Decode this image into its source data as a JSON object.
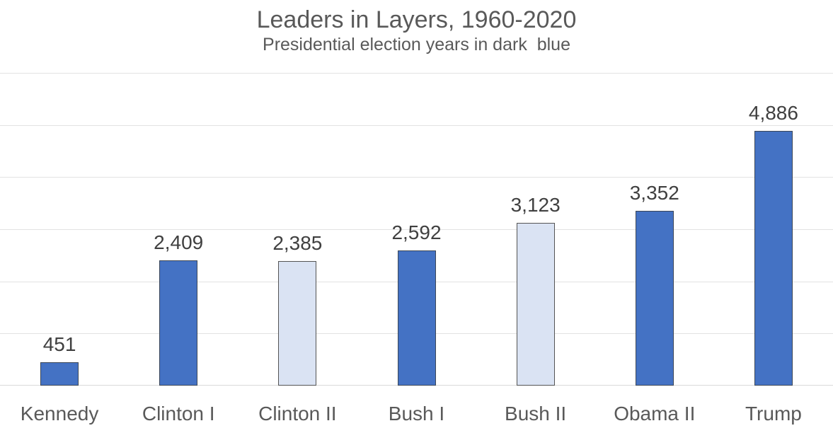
{
  "page": {
    "background": "#FFFFFF"
  },
  "chart_data": {
    "type": "bar",
    "title": "Leaders in Layers, 1960-2020",
    "subtitle": "Presidential election years in dark  blue",
    "categories": [
      "Kennedy",
      "Clinton I",
      "Clinton II",
      "Bush I",
      "Bush II",
      "Obama II",
      "Trump"
    ],
    "values": [
      451,
      2409,
      2385,
      2592,
      3123,
      3352,
      4886
    ],
    "value_labels": [
      "451",
      "2,409",
      "2,385",
      "2,592",
      "3,123",
      "3,352",
      "4,886"
    ],
    "bar_style": [
      "election",
      "election",
      "non_election",
      "election",
      "non_election",
      "election",
      "election"
    ],
    "ylim": [
      0,
      6000
    ],
    "gridline_interval": 1000,
    "grid": true,
    "legend_position": "none",
    "xlabel": "",
    "ylabel": "",
    "y_axis_labels_visible": false
  },
  "colors": {
    "election_bar_fill": "#4472C4",
    "election_bar_border": "#3B4657",
    "non_election_bar_fill": "#DAE3F3",
    "non_election_bar_border": "#545454",
    "gridline": "#E2E2E2",
    "axis_line": "#D9D9D9",
    "title_text": "#595959",
    "subtitle_text": "#595959",
    "data_label_text": "#404040",
    "category_label_text": "#595959"
  }
}
